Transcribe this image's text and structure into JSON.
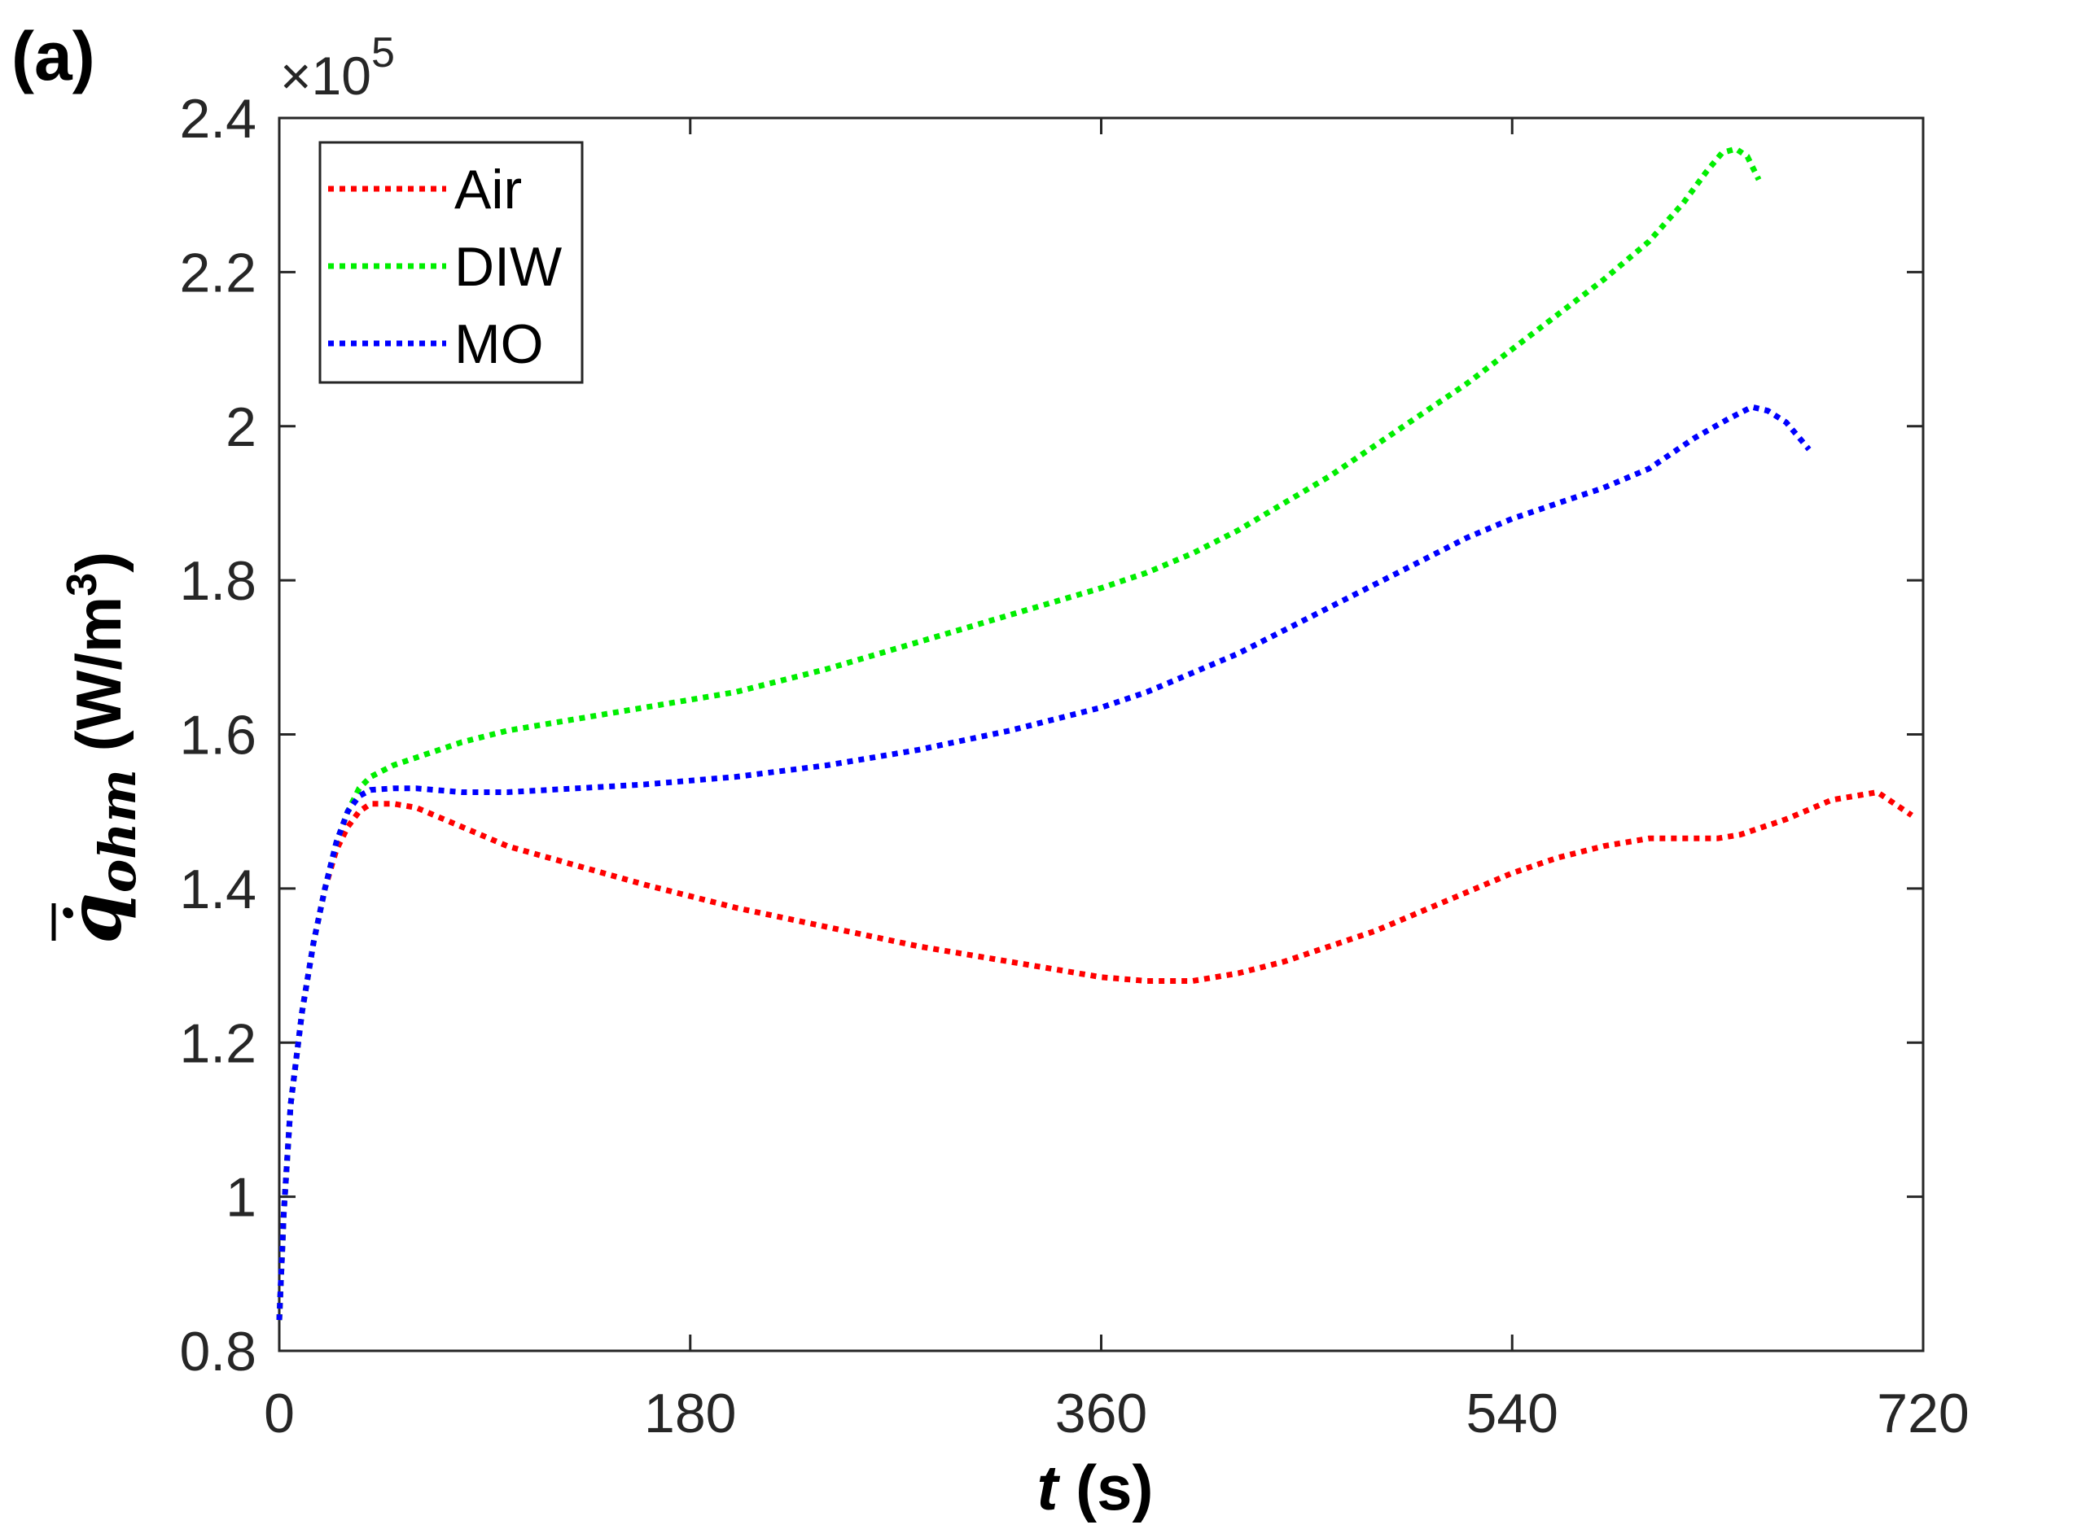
{
  "panel_label": "(a)",
  "colors": {
    "Air": "#ff0000",
    "DIW": "#00ee00",
    "MO": "#0000ff",
    "axis": "#262626"
  },
  "chart_data": {
    "type": "line",
    "title": "",
    "xlabel_italic": "t",
    "xlabel_rest": " (s)",
    "ylabel_symbol": "q̇",
    "ylabel_subscript": "ohm",
    "ylabel_units": " (W/m",
    "ylabel_units_sup": "3",
    "ylabel_units_close": ")",
    "y_exponent_prefix": "×10",
    "y_exponent_power": "5",
    "y_multiplier": 100000,
    "xlim": [
      0,
      720
    ],
    "ylim": [
      0.8,
      2.4
    ],
    "xticks": [
      0,
      180,
      360,
      540,
      720
    ],
    "xtick_labels": [
      "0",
      "180",
      "360",
      "540",
      "720"
    ],
    "yticks": [
      0.8,
      1.0,
      1.2,
      1.4,
      1.6,
      1.8,
      2.0,
      2.2,
      2.4
    ],
    "ytick_labels": [
      "0.8",
      "1",
      "1.2",
      "1.4",
      "1.6",
      "1.8",
      "2",
      "2.2",
      "2.4"
    ],
    "grid": false,
    "legend_position": "top-left",
    "line_style": "dotted",
    "series": [
      {
        "name": "Air",
        "x": [
          0,
          2,
          5,
          10,
          15,
          20,
          25,
          30,
          35,
          40,
          50,
          60,
          80,
          100,
          130,
          160,
          200,
          240,
          280,
          320,
          360,
          380,
          400,
          420,
          440,
          460,
          480,
          500,
          520,
          540,
          560,
          580,
          600,
          620,
          630,
          640,
          660,
          680,
          700,
          715
        ],
        "y": [
          0.84,
          0.98,
          1.12,
          1.24,
          1.33,
          1.4,
          1.45,
          1.48,
          1.5,
          1.51,
          1.51,
          1.505,
          1.48,
          1.455,
          1.43,
          1.405,
          1.375,
          1.35,
          1.325,
          1.305,
          1.285,
          1.28,
          1.28,
          1.29,
          1.305,
          1.325,
          1.345,
          1.37,
          1.395,
          1.42,
          1.44,
          1.455,
          1.465,
          1.465,
          1.465,
          1.47,
          1.49,
          1.515,
          1.525,
          1.495
        ]
      },
      {
        "name": "DIW",
        "x": [
          0,
          2,
          5,
          10,
          15,
          20,
          25,
          30,
          35,
          40,
          50,
          60,
          80,
          100,
          130,
          160,
          200,
          240,
          280,
          320,
          360,
          380,
          400,
          420,
          440,
          460,
          480,
          500,
          520,
          540,
          560,
          580,
          600,
          615,
          625,
          632,
          638,
          643,
          648
        ],
        "y": [
          0.84,
          0.98,
          1.12,
          1.24,
          1.33,
          1.4,
          1.46,
          1.5,
          1.53,
          1.545,
          1.56,
          1.57,
          1.59,
          1.605,
          1.62,
          1.635,
          1.655,
          1.685,
          1.72,
          1.755,
          1.79,
          1.81,
          1.835,
          1.865,
          1.9,
          1.935,
          1.975,
          2.015,
          2.055,
          2.1,
          2.145,
          2.19,
          2.24,
          2.29,
          2.33,
          2.355,
          2.36,
          2.35,
          2.32
        ]
      },
      {
        "name": "MO",
        "x": [
          0,
          2,
          5,
          10,
          15,
          20,
          25,
          30,
          35,
          40,
          50,
          60,
          80,
          100,
          130,
          160,
          200,
          240,
          280,
          320,
          360,
          380,
          400,
          420,
          440,
          460,
          480,
          500,
          520,
          540,
          560,
          580,
          600,
          620,
          635,
          645,
          652,
          660,
          670
        ],
        "y": [
          0.84,
          0.98,
          1.12,
          1.24,
          1.33,
          1.4,
          1.46,
          1.5,
          1.52,
          1.528,
          1.53,
          1.53,
          1.525,
          1.525,
          1.53,
          1.535,
          1.545,
          1.56,
          1.58,
          1.605,
          1.635,
          1.655,
          1.68,
          1.705,
          1.735,
          1.765,
          1.795,
          1.825,
          1.855,
          1.88,
          1.9,
          1.92,
          1.945,
          1.985,
          2.01,
          2.025,
          2.02,
          2.005,
          1.97
        ]
      }
    ]
  }
}
